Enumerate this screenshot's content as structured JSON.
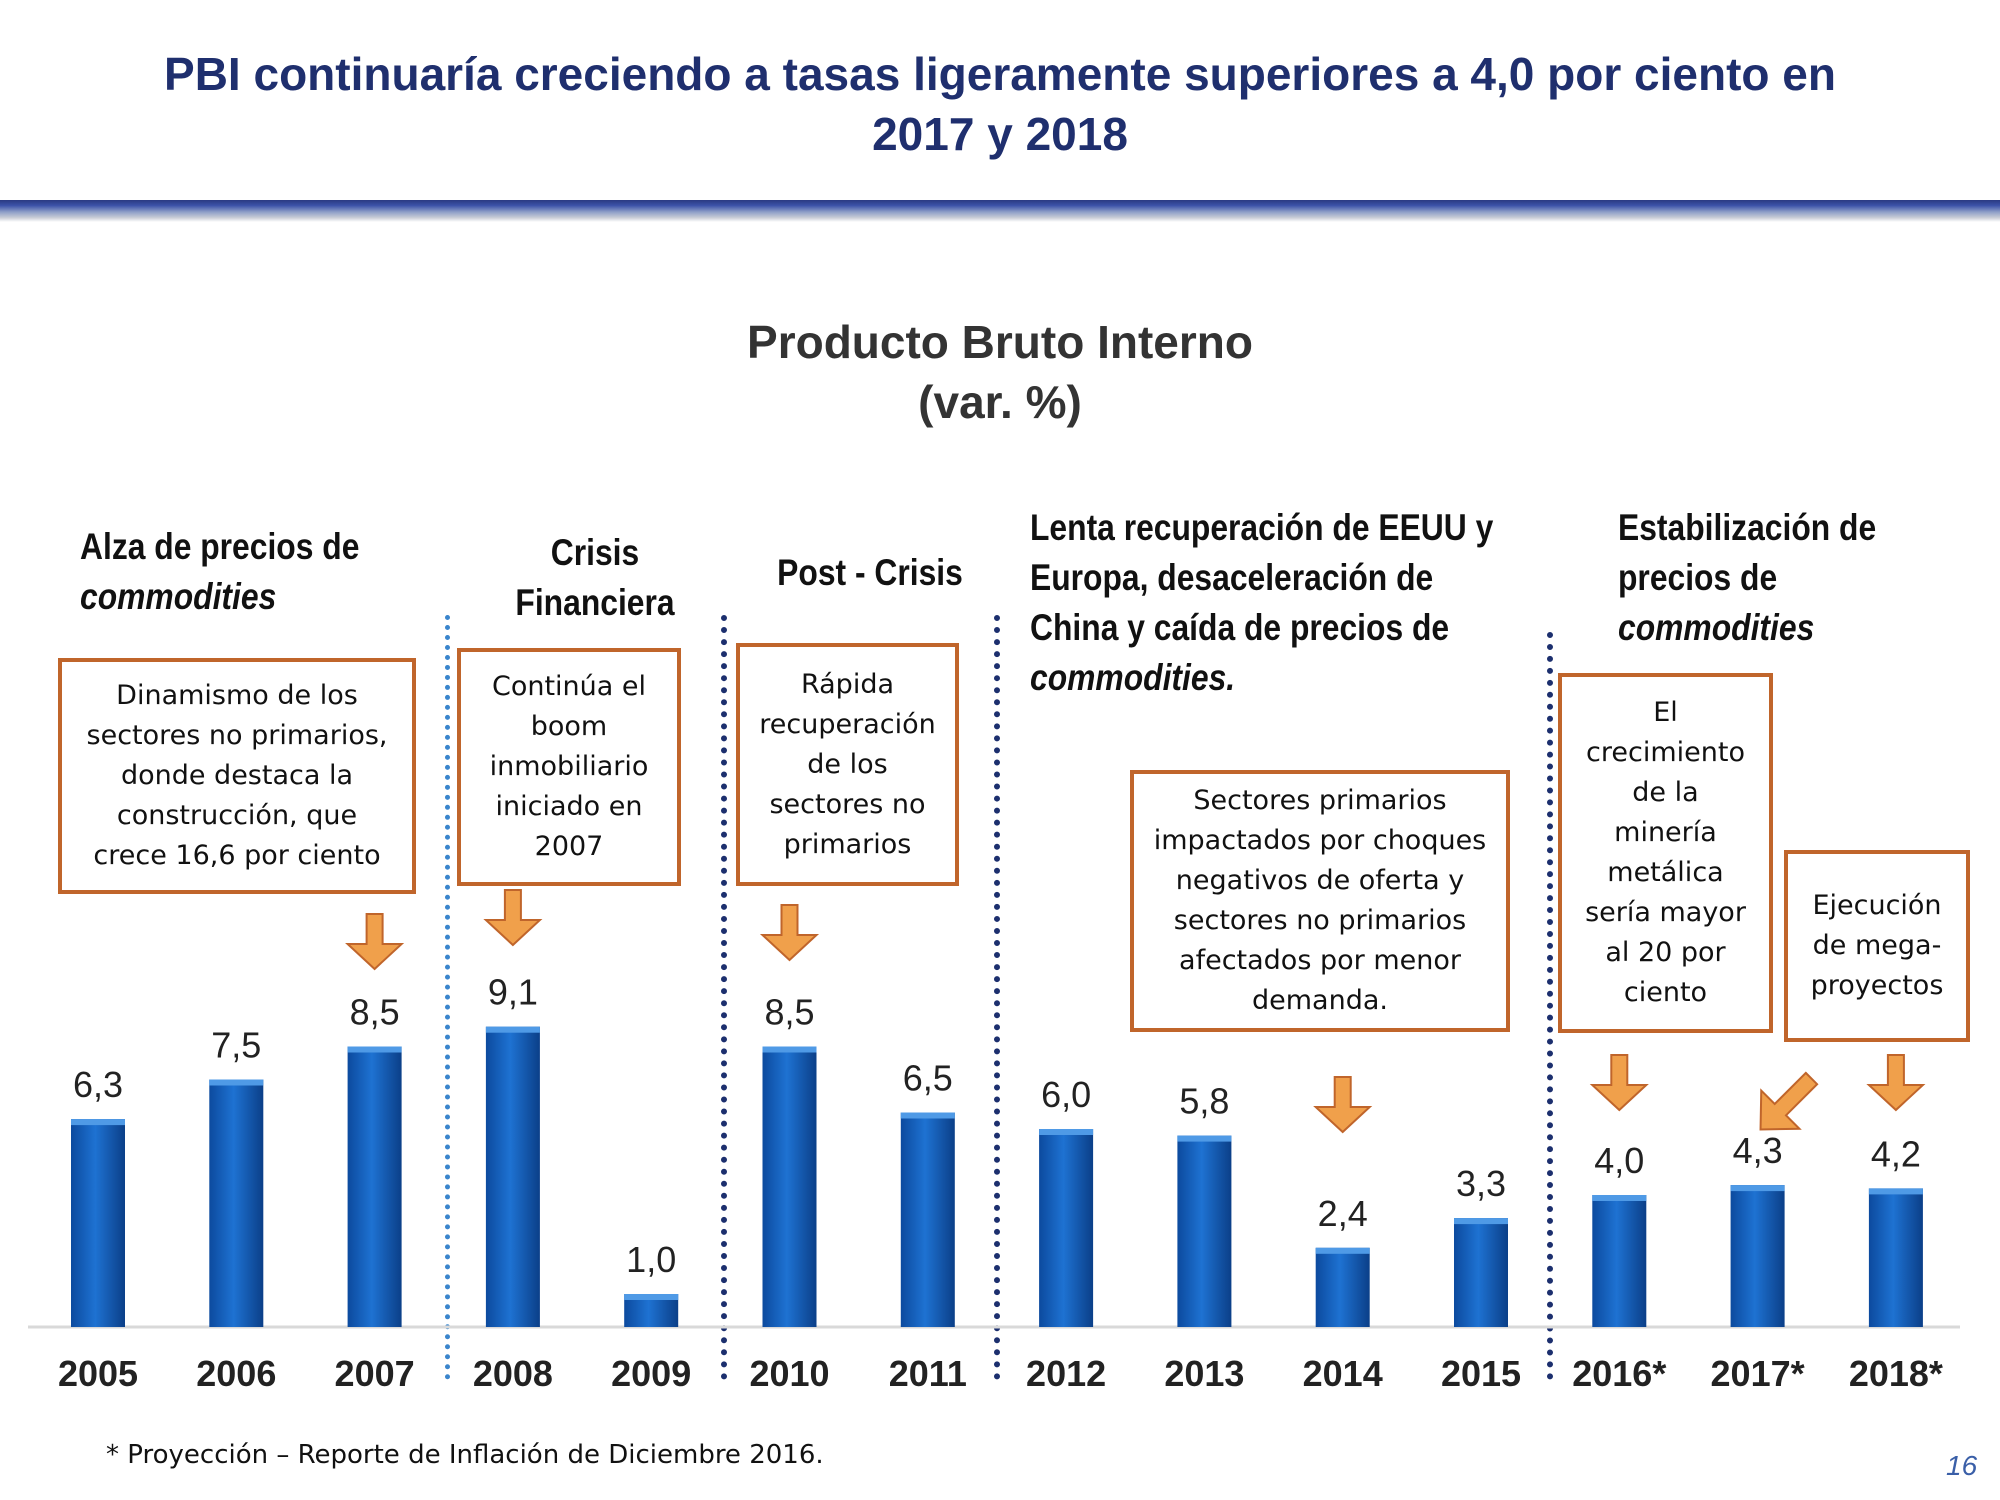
{
  "slide": {
    "title_line1": "PBI continuaría creciendo a tasas ligeramente superiores a 4,0 por ciento en",
    "title_line2": "2017 y 2018",
    "footnote": "* Proyección – Reporte de Inflación de Diciembre 2016.",
    "page_number": "16"
  },
  "periods": [
    {
      "line1": "Alza de precios de",
      "line2_italic": "commodities"
    },
    {
      "line1": "Crisis",
      "line2": "Financiera"
    },
    {
      "line1": "Post - Crisis"
    },
    {
      "line1": "Lenta recuperación de EEUU y",
      "line2": "Europa, desaceleración de",
      "line3": "China y caída de precios de",
      "line4_italic": "commodities."
    },
    {
      "line1": "Estabilización de",
      "line2": "precios de",
      "line3_italic": "commodities"
    }
  ],
  "annotations": [
    {
      "lines": [
        "Dinamismo de los",
        "sectores no primarios,",
        "donde destaca la",
        "construcción, que",
        "crece 16,6 por ciento"
      ]
    },
    {
      "lines": [
        "Continúa el",
        "boom",
        "inmobiliario",
        "iniciado en",
        "2007"
      ]
    },
    {
      "lines": [
        "Rápida",
        "recuperación",
        "de los",
        "sectores no",
        "primarios"
      ]
    },
    {
      "lines": [
        "Sectores primarios",
        "impactados por choques",
        "negativos de oferta y",
        "sectores no primarios",
        "afectados por menor",
        "demanda."
      ]
    },
    {
      "lines": [
        "El",
        "crecimiento",
        "de la",
        "minería",
        "metálica",
        "sería mayor",
        "al 20 por",
        "ciento"
      ]
    },
    {
      "lines": [
        "Ejecución",
        "de mega-",
        "proyectos"
      ]
    }
  ],
  "chart_data": {
    "type": "bar",
    "title": "Producto Bruto Interno",
    "subtitle": "(var. %)",
    "categories": [
      "2005",
      "2006",
      "2007",
      "2008",
      "2009",
      "2010",
      "2011",
      "2012",
      "2013",
      "2014",
      "2015",
      "2016*",
      "2017*",
      "2018*"
    ],
    "values": [
      6.3,
      7.5,
      8.5,
      9.1,
      1.0,
      8.5,
      6.5,
      6.0,
      5.8,
      2.4,
      3.3,
      4.0,
      4.3,
      4.2
    ],
    "value_labels": [
      "6,3",
      "7,5",
      "8,5",
      "9,1",
      "1,0",
      "8,5",
      "6,5",
      "6,0",
      "5,8",
      "2,4",
      "3,3",
      "4,0",
      "4,3",
      "4,2"
    ],
    "ylim": [
      0,
      10
    ],
    "grid": false,
    "legend": "none",
    "bar_color": "#1565c0"
  }
}
